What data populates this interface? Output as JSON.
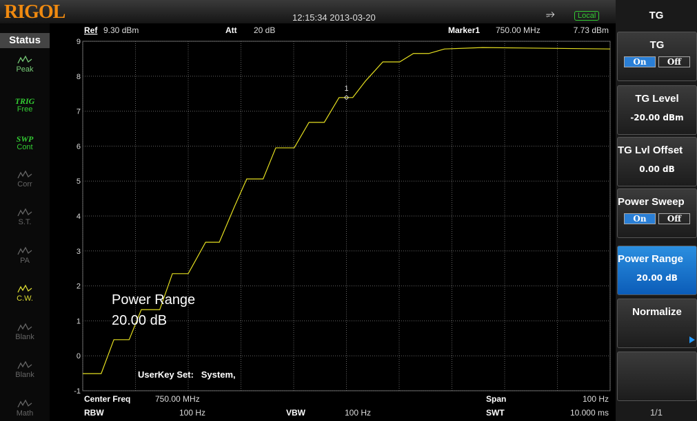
{
  "header": {
    "logo": "RIGOL",
    "datetime": "12:15:34 2013-03-20",
    "mode": "Local"
  },
  "status": {
    "title": "Status",
    "items": [
      {
        "label": "Peak"
      },
      {
        "top": "TRIG",
        "label": "Free"
      },
      {
        "top": "SWP",
        "label": "Cont"
      },
      {
        "label": "Corr"
      },
      {
        "label": "S.T."
      },
      {
        "label": "PA"
      },
      {
        "label": "C.W."
      },
      {
        "label": "Blank"
      },
      {
        "label": "Blank"
      },
      {
        "label": "Math"
      }
    ]
  },
  "chart_data": {
    "type": "line",
    "ref": "Ref",
    "ref_value": "9.30 dBm",
    "att": "Att",
    "att_value": "20 dB",
    "marker_name": "Marker1",
    "marker_freq": "750.00 MHz",
    "marker_level": "7.73 dBm",
    "marker": {
      "label": "1",
      "x": 5
    },
    "annotations": [
      "Power Range",
      "20.00 dB",
      "UserKey Set:   System,"
    ],
    "x": [
      0,
      0.35,
      0.59,
      0.88,
      1.11,
      1.46,
      1.7,
      2.0,
      2.33,
      2.59,
      2.88,
      3.11,
      3.42,
      3.66,
      4.01,
      4.29,
      4.58,
      4.86,
      5.12,
      5.36,
      5.69,
      6.01,
      6.27,
      6.56,
      6.86,
      7.58,
      10
    ],
    "series": [
      {
        "color": "#e6e020",
        "values": [
          -0.51,
          -0.51,
          0.46,
          0.46,
          1.32,
          1.32,
          2.35,
          2.35,
          3.25,
          3.25,
          4.28,
          5.06,
          5.06,
          5.95,
          5.95,
          6.68,
          6.68,
          7.39,
          7.39,
          7.86,
          8.41,
          8.41,
          8.65,
          8.65,
          8.78,
          8.82,
          8.78
        ]
      }
    ],
    "xlim": [
      0,
      10
    ],
    "xticks": [
      0,
      1,
      2,
      3,
      4,
      5,
      6,
      7,
      8,
      9,
      10
    ],
    "ylim": [
      -1,
      9
    ],
    "yticks": [
      9,
      8,
      7,
      6,
      5,
      4,
      3,
      2,
      1,
      0,
      -1
    ],
    "grid": true
  },
  "footer": {
    "center_freq": "Center Freq",
    "center_value": "750.00 MHz",
    "span": "Span",
    "span_value": "100 Hz",
    "rbw": "RBW",
    "rbw_value": "100 Hz",
    "vbw": "VBW",
    "vbw_value": "100 Hz",
    "swt": "SWT",
    "swt_value": "10.000 ms"
  },
  "menu": {
    "title": "TG",
    "items": [
      {
        "label": "TG",
        "on": "On",
        "off": "Off"
      },
      {
        "label": "TG Level",
        "value": "-20.00 dBm"
      },
      {
        "label": "TG Lvl Offset",
        "value": "0.00 dB"
      },
      {
        "label": "Power Sweep",
        "on": "On",
        "off": "Off"
      },
      {
        "label": "Power Range",
        "value": "20.00 dB"
      },
      {
        "label": "Normalize"
      },
      {}
    ],
    "page": "1/1"
  }
}
